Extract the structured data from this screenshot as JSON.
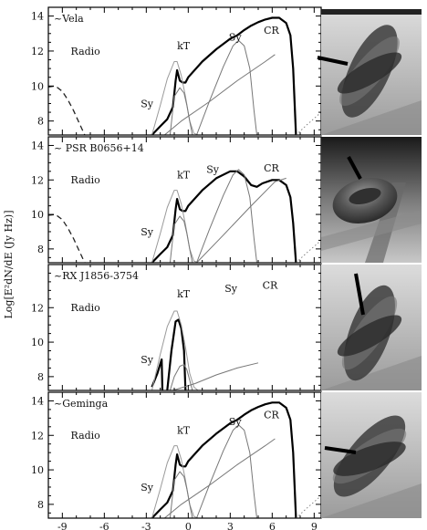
{
  "chart_data": [
    {
      "type": "line",
      "panel_label": "~Vela",
      "ylabel": "Log[E²dN/dE (Jy Hz)]",
      "xlim": [
        -10,
        9.5
      ],
      "ylim": [
        7.2,
        14.5
      ],
      "yticks": [
        8,
        10,
        12,
        14
      ],
      "xticks": [],
      "annotations": [
        {
          "text": "Radio",
          "x": -8.4,
          "y": 11.8
        },
        {
          "text": "Sy",
          "x": -3.4,
          "y": 8.8
        },
        {
          "text": "kT",
          "x": -0.8,
          "y": 12.1
        },
        {
          "text": "Sy",
          "x": 2.9,
          "y": 12.6
        },
        {
          "text": "CR",
          "x": 5.4,
          "y": 13.0
        }
      ],
      "series": [
        {
          "style": "total",
          "x": [
            -2.6,
            -2.0,
            -1.5,
            -1.1,
            -0.9,
            -0.8,
            -0.6,
            -0.4,
            -0.2,
            0.0,
            1.0,
            2.0,
            3.0,
            3.5,
            4.0,
            4.5,
            5.0,
            5.5,
            6.0,
            6.5,
            7.0,
            7.3,
            7.5,
            7.7
          ],
          "y": [
            7.2,
            7.7,
            8.1,
            8.8,
            10.3,
            10.9,
            10.3,
            10.2,
            10.2,
            10.5,
            11.4,
            12.1,
            12.7,
            12.9,
            13.2,
            13.45,
            13.65,
            13.8,
            13.9,
            13.9,
            13.6,
            12.9,
            11.0,
            7.2
          ]
        },
        {
          "style": "radio",
          "x": [
            -10.0,
            -9.5,
            -9.0,
            -8.6,
            -8.2,
            -7.8,
            -7.4
          ],
          "y": [
            9.95,
            10.0,
            9.7,
            9.2,
            8.6,
            7.9,
            7.2
          ]
        },
        {
          "style": "thermal",
          "x": [
            -2.6,
            -2.0,
            -1.5,
            -1.0,
            -0.8,
            -0.5,
            -0.2,
            0.1,
            0.4,
            0.7
          ],
          "y": [
            7.2,
            8.9,
            10.4,
            11.4,
            11.4,
            10.6,
            9.4,
            8.0,
            7.3,
            7.2
          ]
        },
        {
          "style": "component",
          "x": [
            -1.3,
            -1.0,
            -0.6,
            -0.3,
            -0.1,
            0.1,
            0.3
          ],
          "y": [
            7.2,
            9.4,
            9.9,
            9.6,
            8.9,
            8.0,
            7.2
          ]
        },
        {
          "style": "component",
          "x": [
            0.6,
            1.5,
            2.5,
            3.2,
            3.6,
            4.0,
            4.4,
            4.7,
            4.9
          ],
          "y": [
            7.2,
            9.1,
            11.1,
            12.3,
            12.6,
            12.3,
            11.0,
            8.6,
            7.2
          ]
        },
        {
          "style": "component",
          "x": [
            -1.7,
            -0.5,
            1.5,
            3.5,
            5.5,
            6.2
          ],
          "y": [
            7.2,
            8.0,
            9.1,
            10.3,
            11.4,
            11.8
          ]
        },
        {
          "style": "dotted",
          "x": [
            7.7,
            8.5,
            9.5
          ],
          "y": [
            7.2,
            7.8,
            8.5
          ]
        }
      ]
    },
    {
      "type": "line",
      "panel_label": "~ PSR B0656+14",
      "ylabel": "Log[E²dN/dE (Jy Hz)]",
      "xlim": [
        -10,
        9.5
      ],
      "ylim": [
        7.2,
        14.5
      ],
      "yticks": [
        8,
        10,
        12,
        14
      ],
      "xticks": [],
      "annotations": [
        {
          "text": "Radio",
          "x": -8.4,
          "y": 11.8
        },
        {
          "text": "Sy",
          "x": -3.4,
          "y": 8.8
        },
        {
          "text": "kT",
          "x": -0.8,
          "y": 12.1
        },
        {
          "text": "Sy",
          "x": 1.3,
          "y": 12.4
        },
        {
          "text": "CR",
          "x": 5.4,
          "y": 12.5
        }
      ],
      "series": [
        {
          "style": "total",
          "x": [
            -2.6,
            -2.0,
            -1.5,
            -1.1,
            -0.9,
            -0.8,
            -0.6,
            -0.4,
            -0.2,
            0.0,
            1.0,
            2.0,
            3.0,
            3.5,
            4.0,
            4.5,
            4.9,
            5.3,
            6.0,
            6.5,
            7.0,
            7.3,
            7.5,
            7.7
          ],
          "y": [
            7.2,
            7.7,
            8.1,
            8.8,
            10.3,
            10.9,
            10.3,
            10.2,
            10.2,
            10.5,
            11.4,
            12.1,
            12.5,
            12.5,
            12.2,
            11.7,
            11.6,
            11.8,
            12.0,
            12.0,
            11.7,
            11.0,
            9.5,
            7.2
          ]
        },
        {
          "style": "radio",
          "x": [
            -10.0,
            -9.5,
            -9.0,
            -8.6,
            -8.2,
            -7.8,
            -7.4
          ],
          "y": [
            9.95,
            10.0,
            9.7,
            9.2,
            8.6,
            7.9,
            7.2
          ]
        },
        {
          "style": "thermal",
          "x": [
            -2.6,
            -2.0,
            -1.5,
            -1.0,
            -0.8,
            -0.5,
            -0.2,
            0.1,
            0.4,
            0.7
          ],
          "y": [
            7.2,
            8.9,
            10.4,
            11.4,
            11.4,
            10.6,
            9.4,
            8.0,
            7.3,
            7.2
          ]
        },
        {
          "style": "component",
          "x": [
            -1.3,
            -1.0,
            -0.6,
            -0.3,
            -0.1,
            0.1,
            0.3
          ],
          "y": [
            7.2,
            9.4,
            9.9,
            9.6,
            8.9,
            8.0,
            7.2
          ]
        },
        {
          "style": "component",
          "x": [
            0.6,
            1.5,
            2.5,
            3.2,
            3.6,
            4.0,
            4.4,
            4.7,
            4.9
          ],
          "y": [
            7.2,
            9.1,
            11.1,
            12.3,
            12.6,
            12.3,
            11.0,
            8.6,
            7.2
          ]
        },
        {
          "style": "component",
          "x": [
            0.6,
            2.5,
            4.5,
            6.2,
            7.0
          ],
          "y": [
            7.2,
            8.8,
            10.5,
            11.9,
            12.1
          ]
        },
        {
          "style": "dotted",
          "x": [
            7.7,
            8.5,
            9.5
          ],
          "y": [
            7.2,
            7.8,
            8.5
          ]
        }
      ]
    },
    {
      "type": "line",
      "panel_label": "~RX J1856-3754",
      "ylabel": "Log[E²dN/dE (Jy Hz)]",
      "xlim": [
        -10,
        9.5
      ],
      "ylim": [
        7.2,
        14.5
      ],
      "yticks": [
        8,
        10,
        12
      ],
      "xticks": [],
      "annotations": [
        {
          "text": "Radio",
          "x": -8.4,
          "y": 11.8
        },
        {
          "text": "Sy",
          "x": -3.4,
          "y": 8.8
        },
        {
          "text": "kT",
          "x": -0.8,
          "y": 12.6
        },
        {
          "text": "Sy",
          "x": 2.6,
          "y": 12.9
        },
        {
          "text": "CR",
          "x": 5.3,
          "y": 13.1
        }
      ],
      "series": [
        {
          "style": "total",
          "x": [
            -2.6,
            -2.2,
            -1.9,
            -1.85
          ],
          "y": [
            7.4,
            8.2,
            9.0,
            7.2
          ]
        },
        {
          "style": "total",
          "x": [
            -1.5,
            -1.2,
            -0.9,
            -0.7,
            -0.5,
            -0.3,
            -0.2
          ],
          "y": [
            7.2,
            9.5,
            11.2,
            11.3,
            10.8,
            9.5,
            7.2
          ]
        },
        {
          "style": "thermal",
          "x": [
            -2.6,
            -2.0,
            -1.5,
            -1.0,
            -0.8,
            -0.5,
            -0.2,
            0.1,
            0.4,
            0.7
          ],
          "y": [
            7.2,
            9.3,
            10.9,
            11.8,
            11.8,
            11.0,
            9.7,
            8.2,
            7.4,
            7.2
          ]
        },
        {
          "style": "component",
          "x": [
            -1.3,
            -1.0,
            -0.6,
            -0.3,
            -0.1,
            0.1,
            0.3
          ],
          "y": [
            7.2,
            8.0,
            8.6,
            8.7,
            8.4,
            7.8,
            7.2
          ]
        },
        {
          "style": "component",
          "x": [
            -1.1,
            0.5,
            2.0,
            3.5,
            5.0
          ],
          "y": [
            7.2,
            7.6,
            8.1,
            8.5,
            8.8
          ]
        }
      ]
    },
    {
      "type": "line",
      "panel_label": "~Geminga",
      "ylabel": "Log[E²dN/dE (Jy Hz)]",
      "xlim": [
        -10,
        9.5
      ],
      "ylim": [
        7.2,
        14.5
      ],
      "yticks": [
        8,
        10,
        12,
        14
      ],
      "xticks": [
        -9,
        -6,
        -3,
        0,
        3,
        6,
        9
      ],
      "annotations": [
        {
          "text": "Radio",
          "x": -8.4,
          "y": 11.8
        },
        {
          "text": "Sy",
          "x": -3.4,
          "y": 8.8
        },
        {
          "text": "kT",
          "x": -0.8,
          "y": 12.1
        },
        {
          "text": "Sy",
          "x": 2.9,
          "y": 12.6
        },
        {
          "text": "CR",
          "x": 5.4,
          "y": 13.0
        }
      ],
      "series": [
        {
          "style": "total",
          "x": [
            -2.6,
            -2.0,
            -1.5,
            -1.1,
            -0.9,
            -0.8,
            -0.6,
            -0.4,
            -0.2,
            0.0,
            1.0,
            2.0,
            3.0,
            3.5,
            4.0,
            4.5,
            5.0,
            5.5,
            6.0,
            6.5,
            7.0,
            7.3,
            7.5,
            7.7
          ],
          "y": [
            7.2,
            7.7,
            8.1,
            8.8,
            10.3,
            10.9,
            10.3,
            10.2,
            10.2,
            10.5,
            11.4,
            12.1,
            12.7,
            12.9,
            13.2,
            13.45,
            13.65,
            13.8,
            13.9,
            13.9,
            13.6,
            12.9,
            11.0,
            7.2
          ]
        },
        {
          "style": "thermal",
          "x": [
            -2.6,
            -2.0,
            -1.5,
            -1.0,
            -0.8,
            -0.5,
            -0.2,
            0.1,
            0.4,
            0.7
          ],
          "y": [
            7.2,
            8.9,
            10.4,
            11.4,
            11.4,
            10.6,
            9.4,
            8.0,
            7.3,
            7.2
          ]
        },
        {
          "style": "component",
          "x": [
            -1.3,
            -1.0,
            -0.6,
            -0.3,
            -0.1,
            0.1,
            0.3
          ],
          "y": [
            7.2,
            9.4,
            9.9,
            9.6,
            8.9,
            8.0,
            7.2
          ]
        },
        {
          "style": "component",
          "x": [
            0.6,
            1.5,
            2.5,
            3.2,
            3.6,
            4.0,
            4.4,
            4.7,
            4.9
          ],
          "y": [
            7.2,
            9.1,
            11.1,
            12.3,
            12.6,
            12.3,
            11.0,
            8.6,
            7.2
          ]
        },
        {
          "style": "component",
          "x": [
            -1.7,
            -0.5,
            1.5,
            3.5,
            5.5,
            6.2
          ],
          "y": [
            7.2,
            8.0,
            9.1,
            10.3,
            11.4,
            11.8
          ]
        },
        {
          "style": "dotted",
          "x": [
            7.7,
            8.5,
            9.5
          ],
          "y": [
            7.2,
            7.8,
            8.5
          ]
        }
      ]
    }
  ],
  "illustrations": [
    {
      "icon": "pulsar-magnetosphere-3d-render"
    },
    {
      "icon": "pulsar-torus-3d-render"
    },
    {
      "icon": "pulsar-magnetosphere-3d-render"
    },
    {
      "icon": "pulsar-magnetosphere-3d-render"
    }
  ]
}
